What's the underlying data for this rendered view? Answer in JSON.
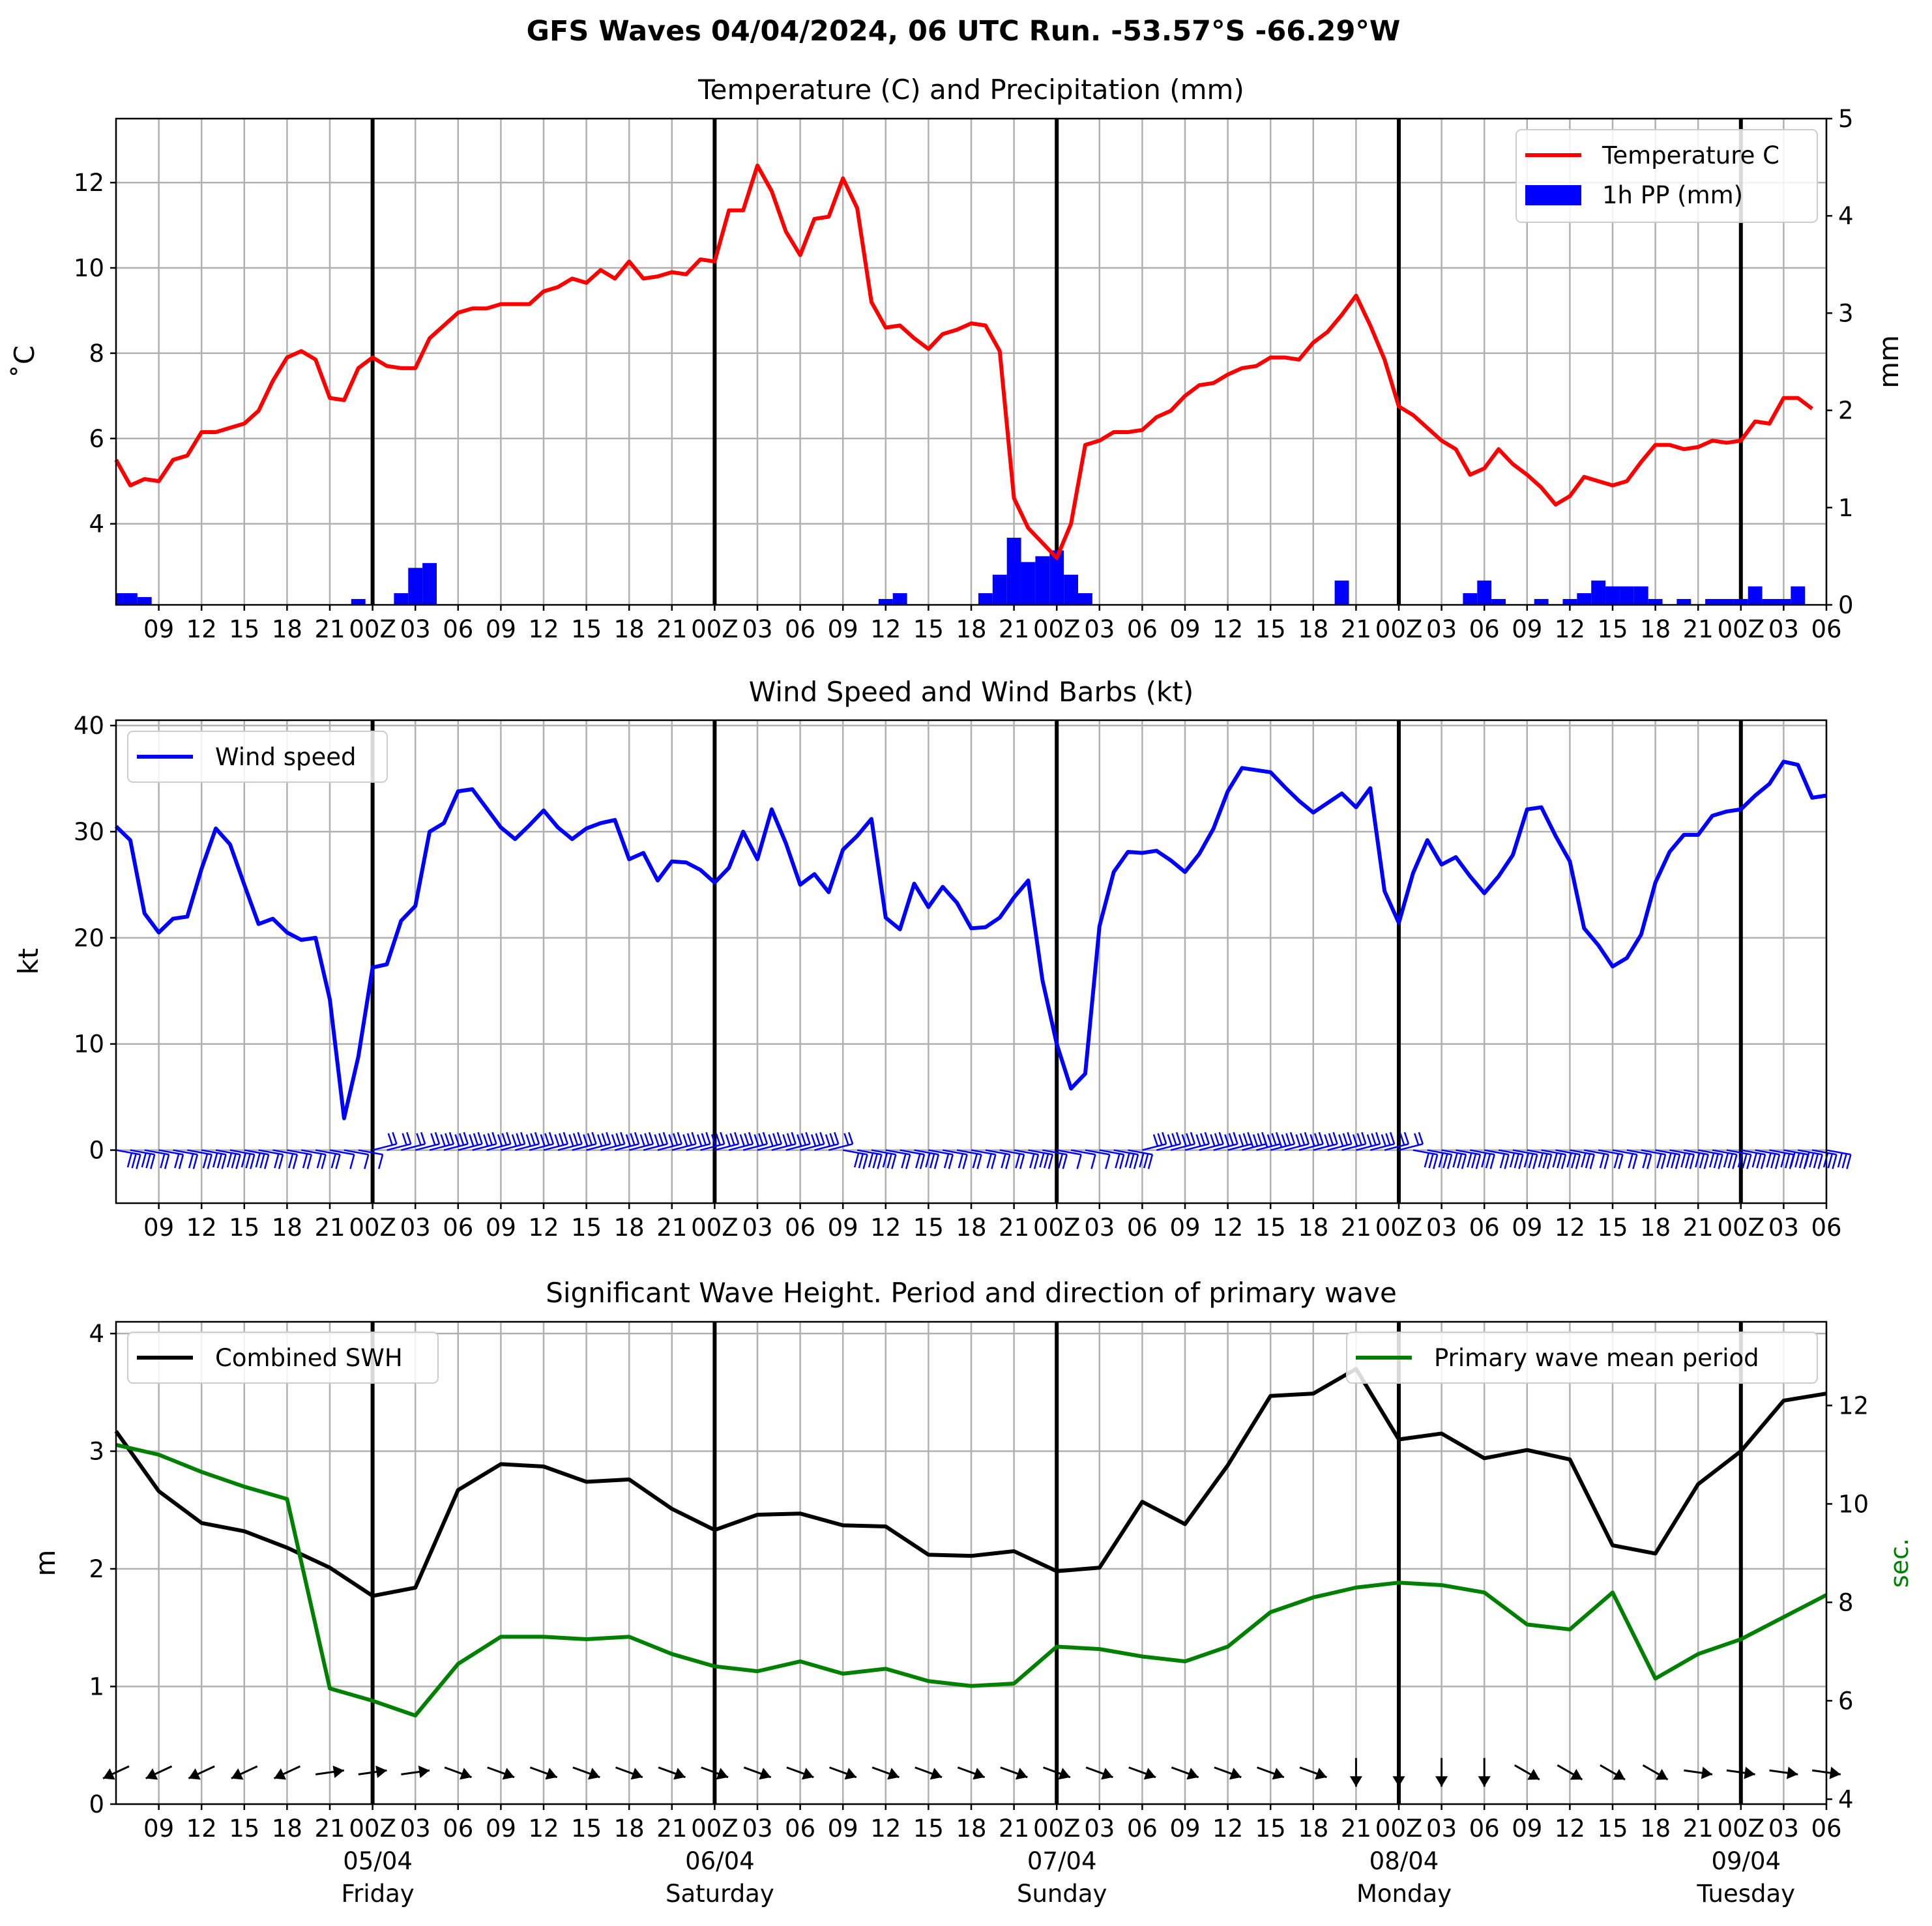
{
  "suptitle": "GFS Waves 04/04/2024, 06 UTC Run. -53.57°S -66.29°W",
  "colors": {
    "temperature": "#ff0000",
    "precip": "#0000ff",
    "wind": "#0000ff",
    "swh": "#000000",
    "period": "#008000",
    "day_line": "#000000",
    "grid": "#b0b0b0"
  },
  "x_ticks": [
    "09",
    "12",
    "15",
    "18",
    "21",
    "00Z",
    "03",
    "06",
    "09",
    "12",
    "15",
    "18",
    "21",
    "00Z",
    "03",
    "06",
    "09",
    "12",
    "15",
    "18",
    "21",
    "00Z",
    "03",
    "06",
    "09",
    "12",
    "15",
    "18",
    "21",
    "00Z",
    "03",
    "06",
    "09",
    "12",
    "15",
    "18",
    "21",
    "00Z",
    "03",
    "06"
  ],
  "day_labels": [
    {
      "date": "05/04",
      "day": "Friday"
    },
    {
      "date": "06/04",
      "day": "Saturday"
    },
    {
      "date": "07/04",
      "day": "Sunday"
    },
    {
      "date": "08/04",
      "day": "Monday"
    },
    {
      "date": "09/04",
      "day": "Tuesday"
    }
  ],
  "chart_data": [
    {
      "type": "line",
      "title": "Temperature (C) and Precipitation (mm)",
      "ylabel": "$^\\circ$C",
      "ylabel_display": "˚C",
      "y2label": "mm",
      "ylim": [
        2.1,
        13.5
      ],
      "y2lim": [
        0,
        5
      ],
      "yticks": [
        4,
        6,
        8,
        10,
        12
      ],
      "y2ticks": [
        0,
        1,
        2,
        3,
        4,
        5
      ],
      "grid": true,
      "legend_position": "top-right",
      "x_hours_start": 6,
      "x_hours_end": 126,
      "series": [
        {
          "name": "Temperature C",
          "type": "line",
          "step_hours": 1,
          "values": [
            5.5,
            4.9,
            5.05,
            5.0,
            5.5,
            5.6,
            6.15,
            6.15,
            6.25,
            6.35,
            6.65,
            7.35,
            7.9,
            8.05,
            7.85,
            6.95,
            6.9,
            7.65,
            7.9,
            7.7,
            7.65,
            7.65,
            8.35,
            8.65,
            8.95,
            9.05,
            9.05,
            9.15,
            9.15,
            9.15,
            9.45,
            9.55,
            9.75,
            9.65,
            9.95,
            9.75,
            10.15,
            9.75,
            9.8,
            9.9,
            9.85,
            10.2,
            10.15,
            11.35,
            11.35,
            12.4,
            11.8,
            10.85,
            10.3,
            11.15,
            11.2,
            12.1,
            11.4,
            9.2,
            8.6,
            8.65,
            8.35,
            8.1,
            8.45,
            8.55,
            8.7,
            8.65,
            8.05,
            4.6,
            3.9,
            3.55,
            3.2,
            4.0,
            5.85,
            5.95,
            6.15,
            6.15,
            6.2,
            6.5,
            6.65,
            7.0,
            7.25,
            7.3,
            7.5,
            7.65,
            7.7,
            7.9,
            7.9,
            7.85,
            8.25,
            8.5,
            8.9,
            9.35,
            8.65,
            7.85,
            6.75,
            6.55,
            6.25,
            5.95,
            5.75,
            5.15,
            5.3,
            5.75,
            5.4,
            5.15,
            4.85,
            4.45,
            4.65,
            5.1,
            5.0,
            4.9,
            5.0,
            5.45,
            5.85,
            5.85,
            5.75,
            5.8,
            5.95,
            5.9,
            5.95,
            6.4,
            6.35,
            6.95,
            6.95,
            6.7
          ]
        },
        {
          "name": "1h PP (mm)",
          "type": "bar",
          "step_hours": 1,
          "values": [
            0.12,
            0.12,
            0.08,
            0,
            0,
            0,
            0,
            0,
            0,
            0,
            0,
            0,
            0,
            0,
            0,
            0,
            0,
            0.06,
            0,
            0,
            0.12,
            0.38,
            0.43,
            0,
            0,
            0,
            0,
            0,
            0,
            0,
            0,
            0,
            0,
            0,
            0,
            0,
            0,
            0,
            0,
            0,
            0,
            0,
            0,
            0,
            0,
            0,
            0,
            0,
            0,
            0,
            0,
            0,
            0,
            0,
            0.06,
            0.12,
            0,
            0,
            0,
            0,
            0,
            0.12,
            0.31,
            0.69,
            0.44,
            0.5,
            0.56,
            0.31,
            0.12,
            0,
            0,
            0,
            0,
            0,
            0,
            0,
            0,
            0,
            0,
            0,
            0,
            0,
            0,
            0,
            0,
            0,
            0.25,
            0,
            0,
            0,
            0,
            0,
            0,
            0,
            0,
            0.12,
            0.25,
            0.06,
            0,
            0,
            0.06,
            0,
            0.06,
            0.12,
            0.25,
            0.19,
            0.19,
            0.19,
            0.06,
            0,
            0.06,
            0,
            0.06,
            0.06,
            0.06,
            0.19,
            0.06,
            0.06,
            0.19
          ]
        }
      ]
    },
    {
      "type": "line",
      "title": "Wind Speed and Wind Barbs (kt)",
      "ylabel": "kt",
      "ylim": [
        -5,
        40.5
      ],
      "yticks": [
        0,
        10,
        20,
        30,
        40
      ],
      "grid": true,
      "legend_position": "top-left",
      "x_hours_start": 6,
      "x_hours_end": 126,
      "series": [
        {
          "name": "Wind speed",
          "step_hours": 1,
          "values": [
            30.5,
            29.2,
            22.3,
            20.5,
            21.8,
            22.0,
            26.5,
            30.3,
            28.8,
            25.0,
            21.3,
            21.8,
            20.5,
            19.8,
            20.0,
            14.2,
            3.0,
            8.8,
            17.2,
            17.5,
            21.6,
            23.0,
            30.0,
            30.8,
            33.8,
            34.0,
            32.2,
            30.4,
            29.3,
            30.6,
            32.0,
            30.4,
            29.3,
            30.3,
            30.8,
            31.1,
            27.4,
            28.0,
            25.4,
            27.2,
            27.1,
            26.4,
            25.2,
            26.6,
            30.0,
            27.4,
            32.1,
            28.9,
            25.0,
            26.0,
            24.3,
            28.3,
            29.6,
            31.2,
            21.9,
            20.8,
            25.1,
            22.9,
            24.8,
            23.3,
            20.9,
            21.0,
            21.9,
            23.8,
            25.4,
            16.0,
            10.0,
            5.8,
            7.2,
            21.1,
            26.2,
            28.1,
            28.0,
            28.2,
            27.3,
            26.2,
            27.9,
            30.3,
            33.8,
            36.0,
            35.8,
            35.6,
            34.2,
            32.9,
            31.8,
            32.7,
            33.6,
            32.3,
            34.1,
            24.4,
            21.4,
            26.1,
            29.2,
            26.9,
            27.6,
            25.8,
            24.2,
            25.8,
            27.8,
            32.1,
            32.3,
            29.6,
            27.2,
            20.9,
            19.3,
            17.3,
            18.1,
            20.3,
            25.2,
            28.1,
            29.7,
            29.7,
            31.5,
            31.9,
            32.1,
            33.4,
            34.5,
            36.6,
            36.3,
            33.2,
            33.4
          ]
        }
      ]
    },
    {
      "type": "line",
      "title": "Significant Wave Height. Period and direction of primary wave",
      "ylabel": "m",
      "y2label": "sec.",
      "ylim": [
        0,
        4.1
      ],
      "y2lim": [
        3.9,
        13.7
      ],
      "yticks": [
        0,
        1,
        2,
        3,
        4
      ],
      "y2ticks": [
        4,
        6,
        8,
        10,
        12
      ],
      "grid": true,
      "legend_positions": {
        "Combined SWH": "top-left",
        "Primary wave mean period": "top-right"
      },
      "x_hours_start": 6,
      "x_hours_end": 126,
      "series": [
        {
          "name": "Combined SWH",
          "axis": "left",
          "step_hours": 3,
          "values": [
            3.17,
            2.66,
            2.39,
            2.32,
            2.18,
            2.01,
            1.77,
            1.84,
            2.67,
            2.89,
            2.87,
            2.74,
            2.76,
            2.51,
            2.33,
            2.46,
            2.47,
            2.37,
            2.36,
            2.12,
            2.11,
            2.15,
            1.98,
            2.01,
            2.57,
            2.38,
            2.88,
            3.47,
            3.49,
            3.7,
            3.1,
            3.15,
            2.94,
            3.01,
            2.93,
            2.2,
            2.13,
            2.72,
            3.0,
            3.43,
            3.49
          ]
        },
        {
          "name": "Primary wave mean period",
          "axis": "right",
          "step_hours": 3,
          "values": [
            11.2,
            11.0,
            10.65,
            10.35,
            10.1,
            6.25,
            6.0,
            5.7,
            6.75,
            7.3,
            7.3,
            7.25,
            7.3,
            6.95,
            6.7,
            6.6,
            6.8,
            6.55,
            6.65,
            6.4,
            6.3,
            6.35,
            7.1,
            7.05,
            6.9,
            6.8,
            7.1,
            7.8,
            8.1,
            8.3,
            8.4,
            8.35,
            8.2,
            7.55,
            7.45,
            8.2,
            6.45,
            6.95,
            7.25,
            7.7,
            8.15
          ]
        }
      ]
    }
  ]
}
